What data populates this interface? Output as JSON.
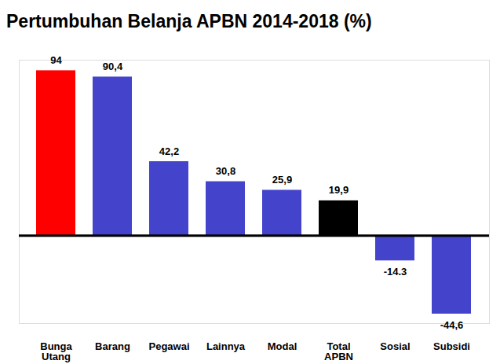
{
  "chart_data": {
    "type": "bar",
    "title": "Pertumbuhan Belanja APBN 2014-2018 (%)",
    "categories": [
      "Bunga Utang",
      "Barang",
      "Pegawai",
      "Lainnya",
      "Modal",
      "Total APBN",
      "Sosial",
      "Subsidi"
    ],
    "values": [
      94,
      90.4,
      42.2,
      30.8,
      25.9,
      19.9,
      -14.3,
      -44.6
    ],
    "value_labels": [
      "94",
      "90,4",
      "42,2",
      "30,8",
      "25,9",
      "19,9",
      "-14.3",
      "-44,6"
    ],
    "colors": [
      "#ff0000",
      "#4343cc",
      "#4343cc",
      "#4343cc",
      "#4343cc",
      "#000000",
      "#4343cc",
      "#4343cc"
    ],
    "ylim": [
      -50,
      100
    ],
    "yticks": [
      0
    ],
    "tick_labels": "x",
    "data_labels": true,
    "grid": false
  }
}
